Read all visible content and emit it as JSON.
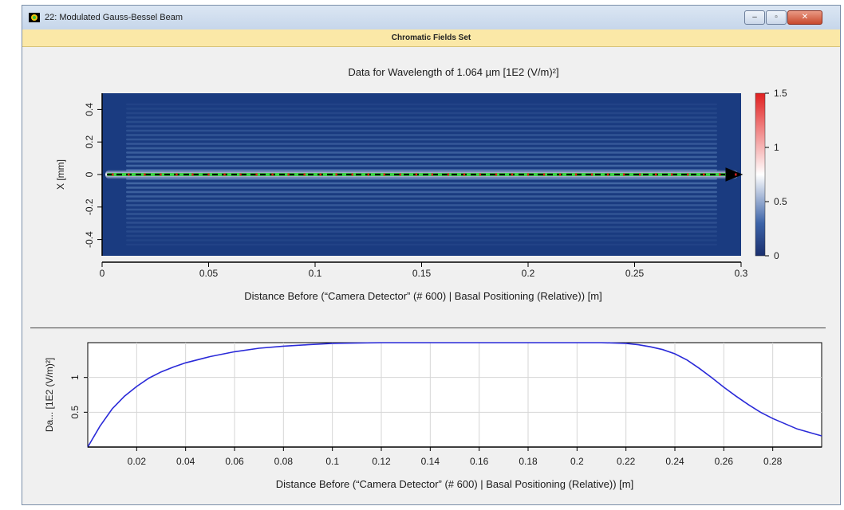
{
  "window": {
    "title": "22: Modulated Gauss-Bessel Beam",
    "banner": "Chromatic Fields Set",
    "controls": {
      "minimize": "–",
      "maximize": "▫",
      "close": "✕"
    }
  },
  "chart_data": [
    {
      "type": "heatmap",
      "title": "Data for Wavelength of 1.064 µm  [1E2 (V/m)²]",
      "xlabel": "Distance Before (“Camera Detector” (# 600) | Basal Positioning (Relative)) [m]",
      "ylabel": "X [mm]",
      "xlim": [
        0,
        0.3
      ],
      "ylim": [
        -0.5,
        0.5
      ],
      "x_ticks": [
        "0",
        "0.05",
        "0.1",
        "0.15",
        "0.2",
        "0.25",
        "0.3"
      ],
      "x_tick_values": [
        0,
        0.05,
        0.1,
        0.15,
        0.2,
        0.25,
        0.3
      ],
      "y_ticks": [
        "-0.4",
        "-0.2",
        "0",
        "0.2",
        "0.4"
      ],
      "y_tick_values": [
        -0.4,
        -0.2,
        0,
        0.2,
        0.4
      ],
      "colorbar": {
        "min": 0,
        "max": 1.5,
        "ticks": [
          "0",
          "0.5",
          "1",
          "1.5"
        ],
        "tick_values": [
          0,
          0.5,
          1,
          1.5
        ],
        "colors": [
          "#1a2f6e",
          "#ffffff",
          "#e02020"
        ]
      },
      "annotation": "dashed arrow along X = 0 from 0 to 0.3 m"
    },
    {
      "type": "line",
      "xlabel": "Distance Before (“Camera Detector” (# 600) | Basal Positioning (Relative)) [m]",
      "ylabel": "Da... [1E2 (V/m)²]",
      "xlim": [
        0,
        0.3
      ],
      "ylim": [
        0,
        1.5
      ],
      "x_ticks": [
        "0.02",
        "0.04",
        "0.06",
        "0.08",
        "0.1",
        "0.12",
        "0.14",
        "0.16",
        "0.18",
        "0.2",
        "0.22",
        "0.24",
        "0.26",
        "0.28"
      ],
      "x_tick_values": [
        0.02,
        0.04,
        0.06,
        0.08,
        0.1,
        0.12,
        0.14,
        0.16,
        0.18,
        0.2,
        0.22,
        0.24,
        0.26,
        0.28
      ],
      "y_ticks": [
        "0.5",
        "1"
      ],
      "y_tick_values": [
        0.5,
        1
      ],
      "grid": true,
      "series": [
        {
          "color": "#2a2ad8",
          "x": [
            0,
            0.005,
            0.01,
            0.015,
            0.02,
            0.025,
            0.03,
            0.035,
            0.04,
            0.05,
            0.06,
            0.07,
            0.08,
            0.09,
            0.1,
            0.12,
            0.14,
            0.16,
            0.18,
            0.2,
            0.21,
            0.22,
            0.225,
            0.23,
            0.235,
            0.24,
            0.245,
            0.25,
            0.255,
            0.26,
            0.265,
            0.27,
            0.275,
            0.28,
            0.29,
            0.3
          ],
          "y": [
            0.0,
            0.3,
            0.55,
            0.73,
            0.87,
            0.99,
            1.08,
            1.15,
            1.21,
            1.3,
            1.37,
            1.42,
            1.45,
            1.47,
            1.49,
            1.5,
            1.5,
            1.5,
            1.5,
            1.5,
            1.5,
            1.49,
            1.47,
            1.44,
            1.4,
            1.34,
            1.25,
            1.13,
            1.0,
            0.86,
            0.73,
            0.61,
            0.5,
            0.41,
            0.26,
            0.16
          ]
        }
      ]
    }
  ]
}
